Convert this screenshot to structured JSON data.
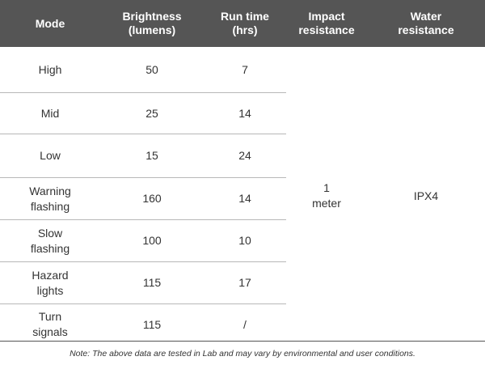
{
  "table": {
    "headers": [
      "Mode",
      "Brightness\n(lumens)",
      "Run time\n(hrs)",
      "Impact\nresistance",
      "Water\nresistance"
    ],
    "rows": [
      {
        "mode": "High",
        "brightness": "50",
        "runtime": "7"
      },
      {
        "mode": "Mid",
        "brightness": "25",
        "runtime": "14"
      },
      {
        "mode": "Low",
        "brightness": "15",
        "runtime": "24"
      },
      {
        "mode": "Warning\nflashing",
        "brightness": "160",
        "runtime": "14"
      },
      {
        "mode": "Slow\nflashing",
        "brightness": "100",
        "runtime": "10"
      },
      {
        "mode": "Hazard\nlights",
        "brightness": "115",
        "runtime": "17"
      },
      {
        "mode": "Turn\nsignals",
        "brightness": "115",
        "runtime": "/"
      }
    ],
    "impact_resistance": "1\nmeter",
    "water_resistance": "IPX4"
  },
  "note": "Note: The above data are tested in Lab and may vary by environmental and user conditions.",
  "colors": {
    "header_bg": "#555555",
    "header_text": "#ffffff",
    "body_text": "#333333",
    "row_rule": "#b8b8b8"
  }
}
